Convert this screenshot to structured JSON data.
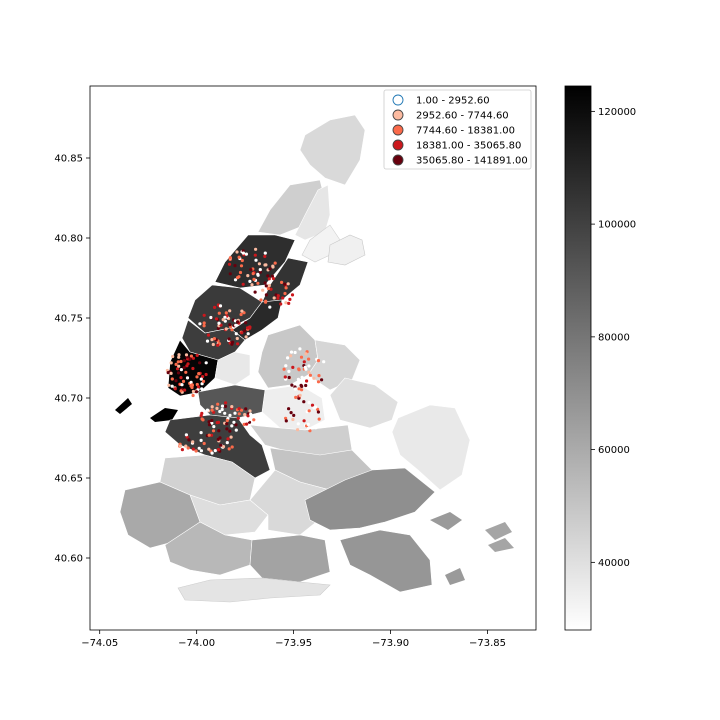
{
  "chart_data": {
    "type": "map",
    "title": "",
    "xlabel": "",
    "ylabel": "",
    "xlim": [
      -74.055,
      -73.825
    ],
    "ylim": [
      40.555,
      40.895
    ],
    "x_ticks": [
      "−74.05",
      "−74.00",
      "−73.95",
      "−73.90",
      "−73.85"
    ],
    "x_tick_values": [
      -74.05,
      -74.0,
      -73.95,
      -73.9,
      -73.85
    ],
    "y_ticks": [
      "40.60",
      "40.65",
      "40.70",
      "40.75",
      "40.80",
      "40.85"
    ],
    "y_tick_values": [
      40.6,
      40.65,
      40.7,
      40.75,
      40.8,
      40.85
    ],
    "colorbar": {
      "range": [
        28000,
        124500
      ],
      "ticks": [
        "40000",
        "60000",
        "80000",
        "100000",
        "120000"
      ],
      "tick_values": [
        40000,
        60000,
        80000,
        100000,
        120000
      ],
      "cmap": "greys"
    },
    "legend": {
      "placement": "top-right",
      "entries": [
        {
          "label": "1.00 - 2952.60",
          "color": "#ffffff",
          "edge": "#1f77b4"
        },
        {
          "label": "2952.60 - 7744.60",
          "color": "#fcbba1",
          "edge": "#444444"
        },
        {
          "label": "7744.60 - 18381.00",
          "color": "#fb6a4a",
          "edge": "#444444"
        },
        {
          "label": "18381.00 - 35065.80",
          "color": "#cb181d",
          "edge": "#444444"
        },
        {
          "label": "35065.80 - 141891.00",
          "color": "#67000d",
          "edge": "#444444"
        }
      ]
    },
    "point_clusters": [
      {
        "cx": -74.005,
        "cy": 40.715,
        "rx": 0.012,
        "ry": 0.014,
        "n": 70
      },
      {
        "cx": -73.985,
        "cy": 40.745,
        "rx": 0.014,
        "ry": 0.014,
        "n": 70
      },
      {
        "cx": -73.972,
        "cy": 40.782,
        "rx": 0.013,
        "ry": 0.012,
        "n": 50
      },
      {
        "cx": -73.96,
        "cy": 40.765,
        "rx": 0.01,
        "ry": 0.01,
        "n": 30
      },
      {
        "cx": -73.945,
        "cy": 40.718,
        "rx": 0.012,
        "ry": 0.014,
        "n": 45
      },
      {
        "cx": -73.985,
        "cy": 40.688,
        "rx": 0.015,
        "ry": 0.009,
        "n": 55
      },
      {
        "cx": -73.995,
        "cy": 40.672,
        "rx": 0.015,
        "ry": 0.008,
        "n": 40
      },
      {
        "cx": -73.945,
        "cy": 40.69,
        "rx": 0.01,
        "ry": 0.012,
        "n": 30
      }
    ]
  },
  "colors": {
    "axis": "#000000",
    "region_edge": "#ffffff"
  }
}
